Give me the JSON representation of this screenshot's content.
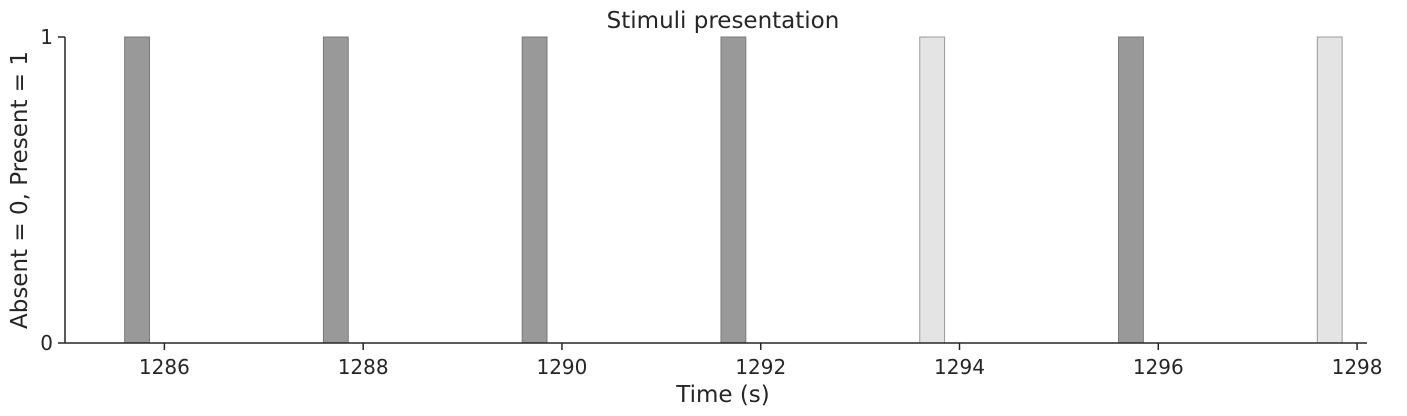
{
  "chart_data": {
    "type": "bar",
    "title": "Stimuli presentation",
    "xlabel": "Time (s)",
    "ylabel": "Absent = 0, Present = 1",
    "xlim": [
      1285.0,
      1298.1
    ],
    "ylim": [
      0,
      1
    ],
    "xticks": [
      1286,
      1288,
      1290,
      1292,
      1294,
      1296,
      1298
    ],
    "yticks": [
      0,
      1
    ],
    "bar_width": 0.25,
    "bars": [
      {
        "x_start": 1285.6,
        "value": 1,
        "color": "#999999"
      },
      {
        "x_start": 1287.6,
        "value": 1,
        "color": "#999999"
      },
      {
        "x_start": 1289.6,
        "value": 1,
        "color": "#999999"
      },
      {
        "x_start": 1291.6,
        "value": 1,
        "color": "#999999"
      },
      {
        "x_start": 1293.6,
        "value": 1,
        "color": "#e4e4e4"
      },
      {
        "x_start": 1295.6,
        "value": 1,
        "color": "#999999"
      },
      {
        "x_start": 1297.6,
        "value": 1,
        "color": "#e4e4e4"
      }
    ],
    "grid": false
  }
}
